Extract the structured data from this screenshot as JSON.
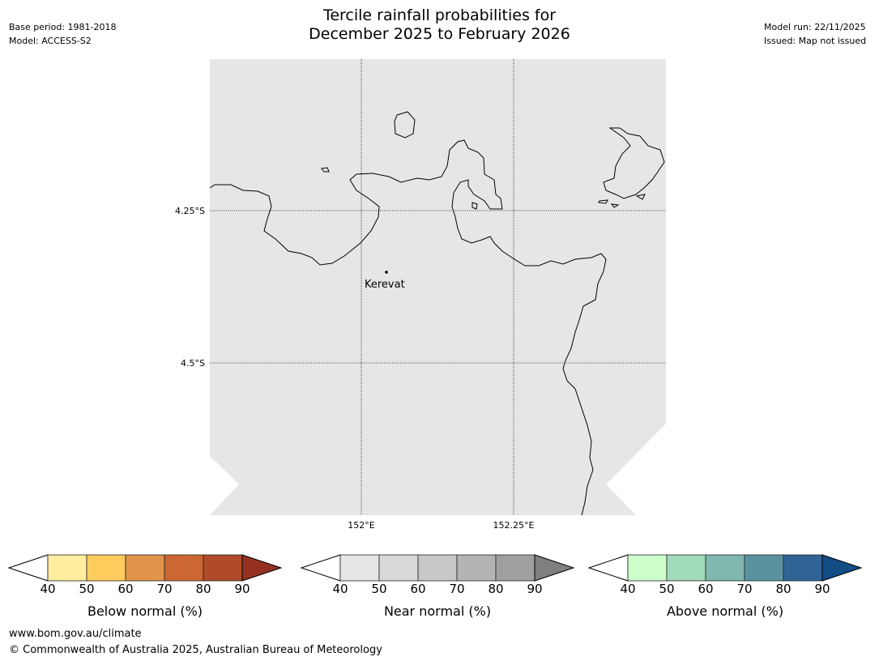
{
  "header": {
    "title_line1": "Tercile rainfall probabilities for",
    "title_line2": "December 2025 to February 2026",
    "base_period": "Base period: 1981-2018",
    "model": "Model: ACCESS-S2",
    "model_run": "Model run: 22/11/2025",
    "issued": "Issued: Map not issued"
  },
  "map": {
    "lat_labels": [
      "4.25°S",
      "4.5°S"
    ],
    "lon_labels": [
      "152°E",
      "152.25°E"
    ],
    "place": "Kerevat",
    "land_color": "#e6e6e6"
  },
  "colorbars": [
    {
      "label": "Below normal (%)",
      "ticks": [
        "40",
        "50",
        "60",
        "70",
        "80",
        "90"
      ],
      "colors": [
        "#ffeda0",
        "#fecc5c",
        "#e1944a",
        "#cc6633",
        "#b04a28"
      ],
      "over": "#953120"
    },
    {
      "label": "Near normal (%)",
      "ticks": [
        "40",
        "50",
        "60",
        "70",
        "80",
        "90"
      ],
      "colors": [
        "#e6e6e6",
        "#d9d9d9",
        "#c8c8c8",
        "#b4b4b4",
        "#a0a0a0"
      ],
      "over": "#808080"
    },
    {
      "label": "Above normal (%)",
      "ticks": [
        "40",
        "50",
        "60",
        "70",
        "80",
        "90"
      ],
      "colors": [
        "#ccffcc",
        "#a3dbbd",
        "#80b8b0",
        "#5a93a0",
        "#316496"
      ],
      "over": "#134d86"
    }
  ],
  "footer": {
    "url": "www.bom.gov.au/climate",
    "copyright": "© Commonwealth of Australia 2025, Australian Bureau of Meteorology"
  }
}
